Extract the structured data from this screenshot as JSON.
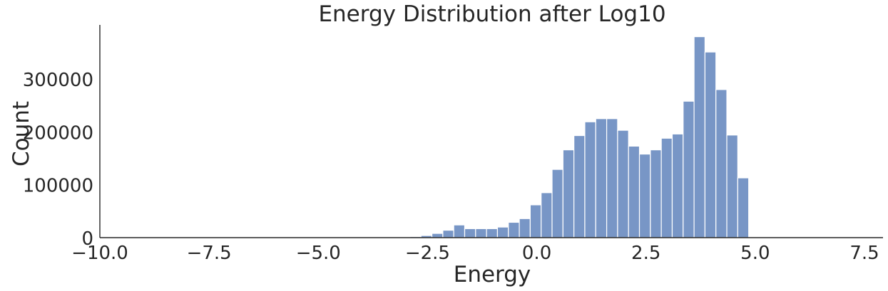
{
  "chart_data": {
    "type": "bar",
    "title": "Energy Distribution after Log10",
    "xlabel": "Energy",
    "ylabel": "Count",
    "xlim": [
      -10.0,
      8.2
    ],
    "ylim": [
      0,
      400000
    ],
    "x_ticks": [
      -10.0,
      -7.5,
      -5.0,
      -2.5,
      0.0,
      2.5,
      5.0,
      7.5
    ],
    "x_tick_labels": [
      "−10.0",
      "−7.5",
      "−5.0",
      "−2.5",
      "0.0",
      "2.5",
      "5.0",
      "7.5"
    ],
    "y_ticks": [
      0,
      100000,
      200000,
      300000
    ],
    "y_tick_labels": [
      "0",
      "100000",
      "200000",
      "300000"
    ],
    "bin_width": 0.25,
    "bins": [
      {
        "x0": -2.9,
        "count": 2000
      },
      {
        "x0": -2.65,
        "count": 4000
      },
      {
        "x0": -2.4,
        "count": 8000
      },
      {
        "x0": -2.15,
        "count": 14000
      },
      {
        "x0": -1.9,
        "count": 24000
      },
      {
        "x0": -1.65,
        "count": 17000
      },
      {
        "x0": -1.4,
        "count": 17000
      },
      {
        "x0": -1.15,
        "count": 17000
      },
      {
        "x0": -0.9,
        "count": 20000
      },
      {
        "x0": -0.65,
        "count": 29000
      },
      {
        "x0": -0.4,
        "count": 36000
      },
      {
        "x0": -0.15,
        "count": 62000
      },
      {
        "x0": 0.1,
        "count": 85000
      },
      {
        "x0": 0.35,
        "count": 129000
      },
      {
        "x0": 0.6,
        "count": 166000
      },
      {
        "x0": 0.85,
        "count": 193000
      },
      {
        "x0": 1.1,
        "count": 219000
      },
      {
        "x0": 1.35,
        "count": 225000
      },
      {
        "x0": 1.6,
        "count": 225000
      },
      {
        "x0": 1.85,
        "count": 203000
      },
      {
        "x0": 2.1,
        "count": 173000
      },
      {
        "x0": 2.35,
        "count": 158000
      },
      {
        "x0": 2.6,
        "count": 166000
      },
      {
        "x0": 2.85,
        "count": 188000
      },
      {
        "x0": 3.1,
        "count": 196000
      },
      {
        "x0": 3.35,
        "count": 258000
      },
      {
        "x0": 3.6,
        "count": 380000
      },
      {
        "x0": 3.85,
        "count": 351000
      },
      {
        "x0": 4.1,
        "count": 280000
      },
      {
        "x0": 4.35,
        "count": 194000
      },
      {
        "x0": 4.6,
        "count": 113000
      }
    ],
    "grid": false,
    "legend": "none",
    "bar_color": "#7896c6"
  }
}
